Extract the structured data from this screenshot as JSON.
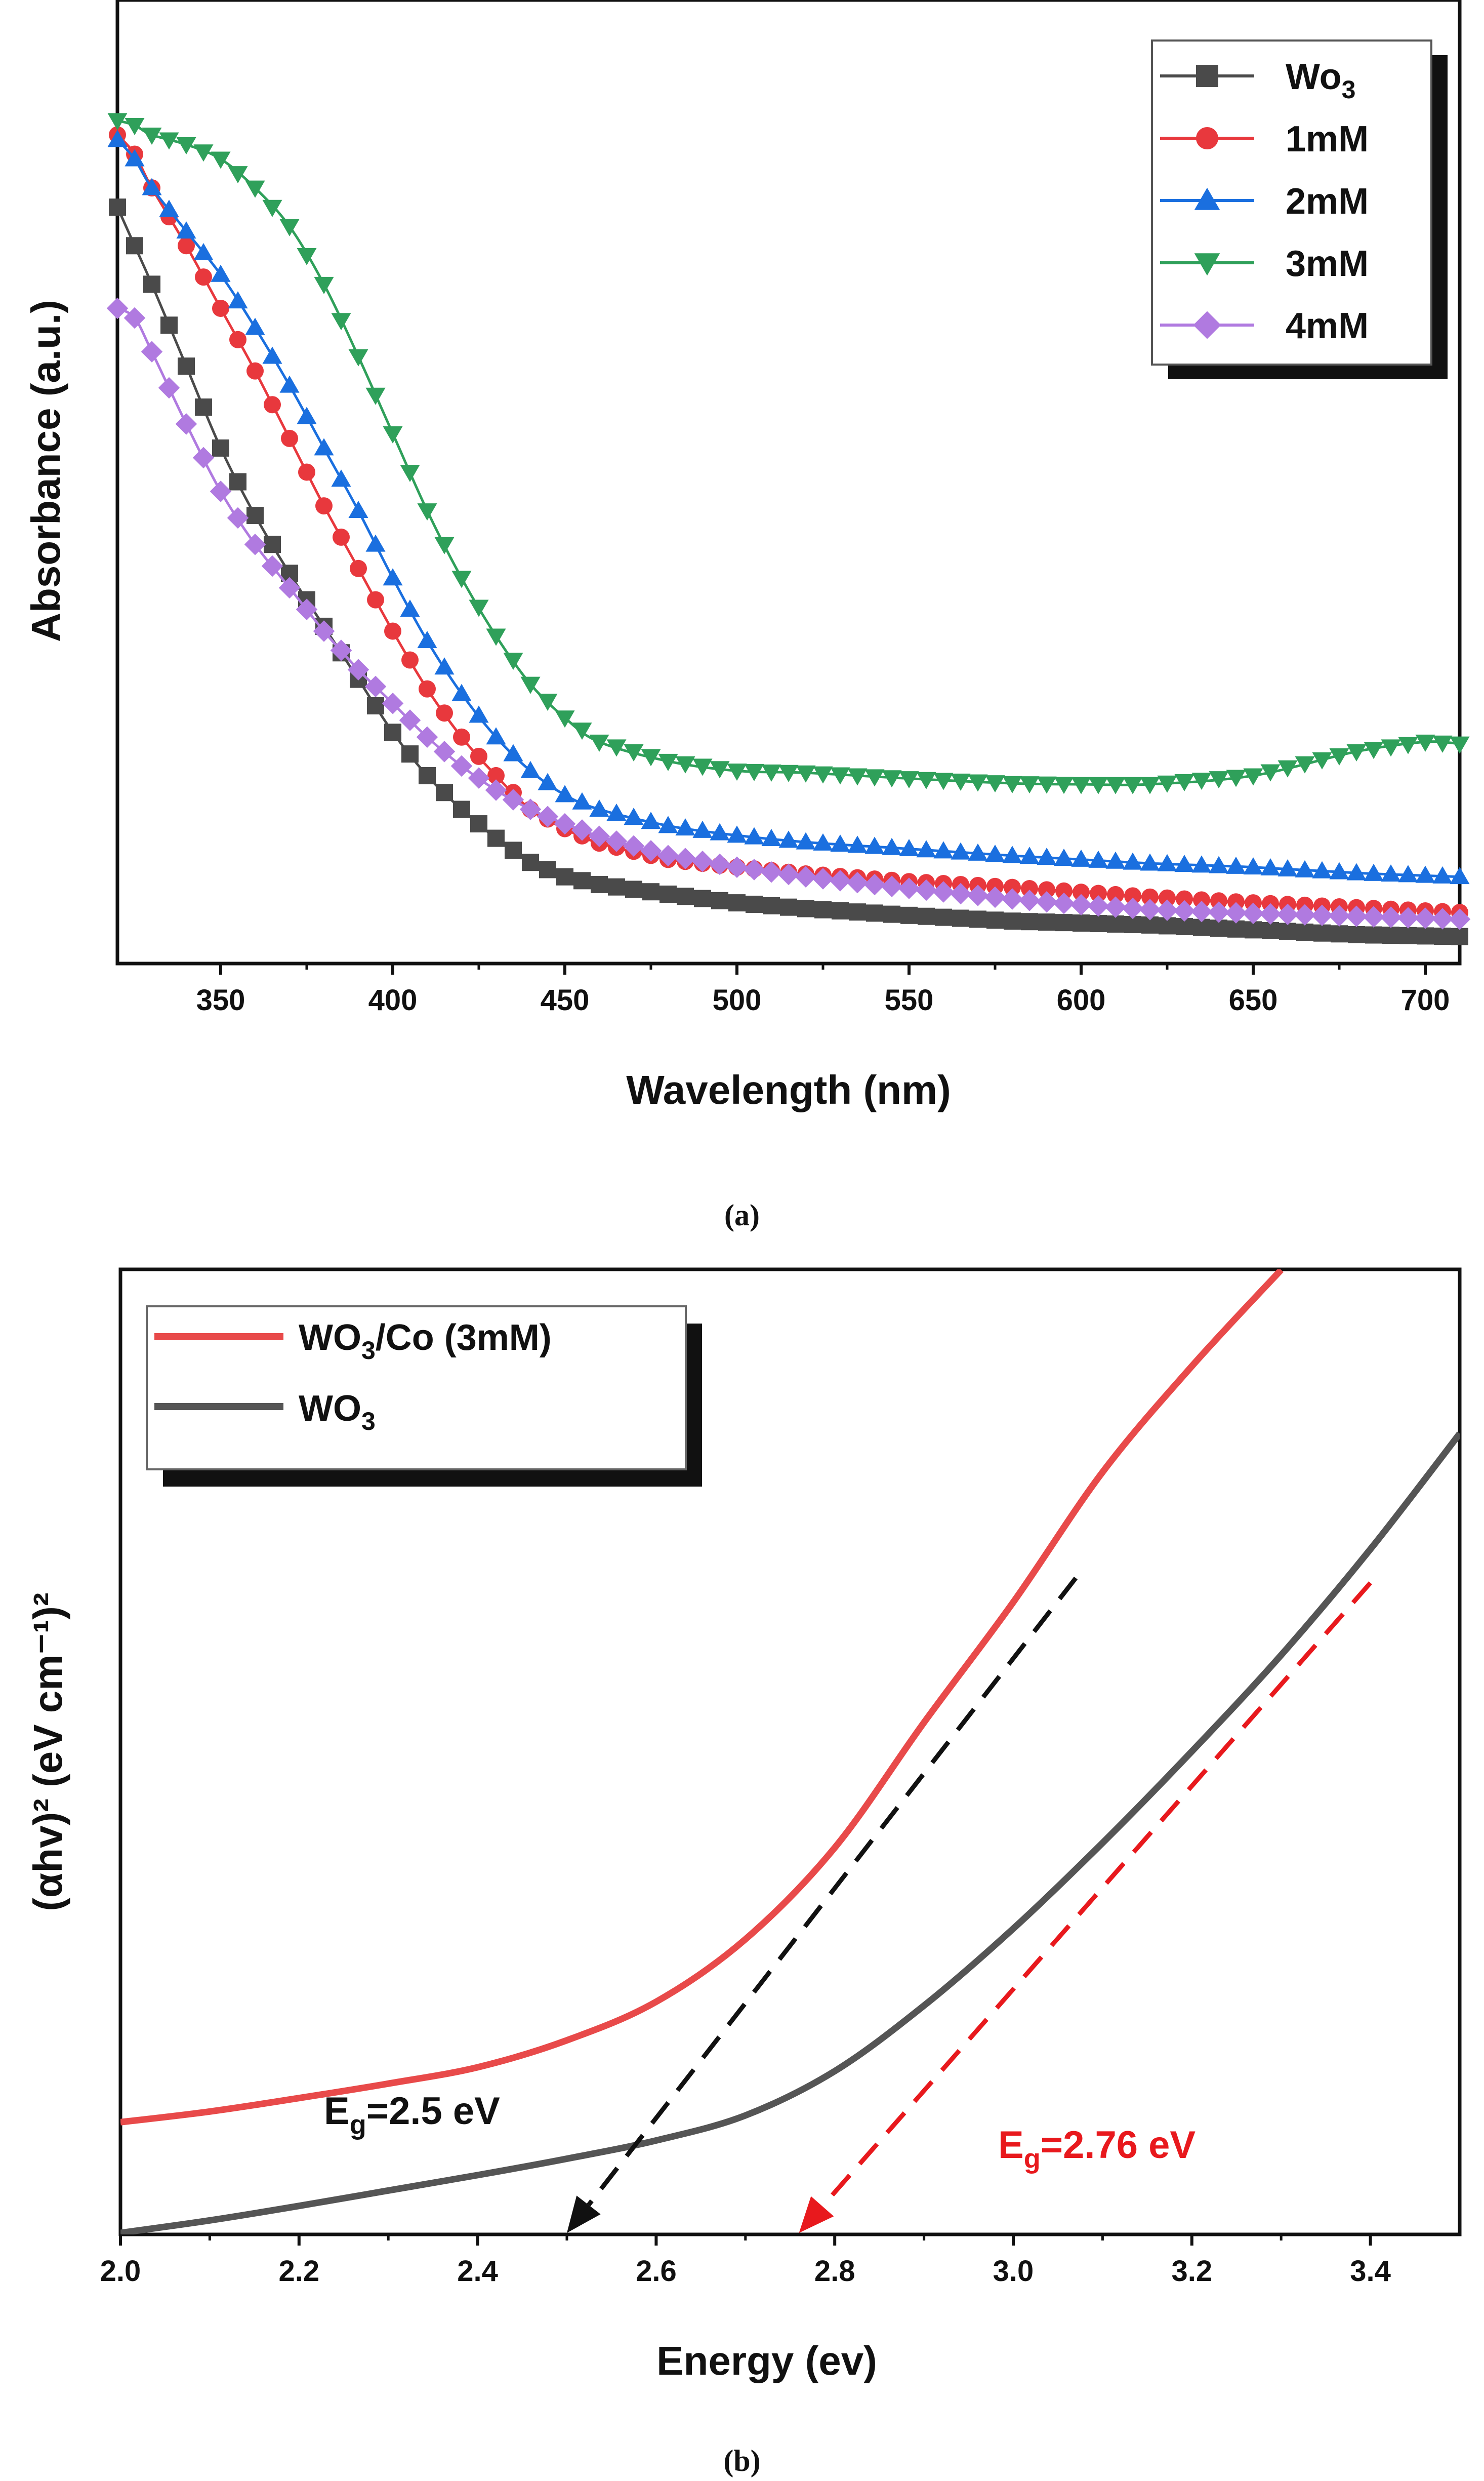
{
  "colors": {
    "wo3": "#4a4a4a",
    "c1mM": "#e8383d",
    "c2mM": "#1a6fdf",
    "c3mM": "#2fa05a",
    "c4mM": "#b07ae0",
    "bandRed": "#e84a4a",
    "bandBlack": "#555555"
  },
  "chart_data": [
    {
      "panel": "a",
      "type": "line",
      "caption": "(a)",
      "xlabel": "Wavelength (nm)",
      "ylabel": "Absorbance (a.u.)",
      "xlim": [
        320,
        710
      ],
      "ylim": [
        0,
        1
      ],
      "x_ticks": [
        "350",
        "400",
        "450",
        "500",
        "550",
        "600",
        "650",
        "700"
      ],
      "y_ticks_shown": false,
      "legend_position": "top-right",
      "series": [
        {
          "key": "wo3",
          "name": "Wo",
          "name_sub": "3",
          "marker": "square",
          "points": [
            [
              320,
              0.785
            ],
            [
              325,
              0.745
            ],
            [
              330,
              0.705
            ],
            [
              340,
              0.62
            ],
            [
              350,
              0.535
            ],
            [
              360,
              0.465
            ],
            [
              370,
              0.405
            ],
            [
              380,
              0.35
            ],
            [
              390,
              0.295
            ],
            [
              400,
              0.24
            ],
            [
              410,
              0.195
            ],
            [
              420,
              0.16
            ],
            [
              430,
              0.13
            ],
            [
              440,
              0.105
            ],
            [
              450,
              0.09
            ],
            [
              460,
              0.082
            ],
            [
              480,
              0.072
            ],
            [
              500,
              0.063
            ],
            [
              520,
              0.057
            ],
            [
              550,
              0.05
            ],
            [
              580,
              0.044
            ],
            [
              600,
              0.042
            ],
            [
              620,
              0.04
            ],
            [
              650,
              0.035
            ],
            [
              680,
              0.03
            ],
            [
              710,
              0.028
            ]
          ]
        },
        {
          "key": "c1mM",
          "name": "1mM",
          "marker": "circle",
          "points": [
            [
              320,
              0.86
            ],
            [
              325,
              0.84
            ],
            [
              330,
              0.805
            ],
            [
              340,
              0.745
            ],
            [
              350,
              0.68
            ],
            [
              360,
              0.615
            ],
            [
              370,
              0.545
            ],
            [
              380,
              0.475
            ],
            [
              390,
              0.41
            ],
            [
              400,
              0.345
            ],
            [
              410,
              0.285
            ],
            [
              420,
              0.235
            ],
            [
              430,
              0.195
            ],
            [
              440,
              0.16
            ],
            [
              450,
              0.14
            ],
            [
              460,
              0.125
            ],
            [
              480,
              0.108
            ],
            [
              500,
              0.1
            ],
            [
              520,
              0.093
            ],
            [
              550,
              0.085
            ],
            [
              580,
              0.079
            ],
            [
              600,
              0.074
            ],
            [
              620,
              0.069
            ],
            [
              650,
              0.063
            ],
            [
              680,
              0.058
            ],
            [
              710,
              0.053
            ]
          ]
        },
        {
          "key": "c2mM",
          "name": "2mM",
          "marker": "triangle-up",
          "points": [
            [
              320,
              0.855
            ],
            [
              325,
              0.835
            ],
            [
              330,
              0.805
            ],
            [
              340,
              0.76
            ],
            [
              350,
              0.715
            ],
            [
              360,
              0.66
            ],
            [
              370,
              0.6
            ],
            [
              380,
              0.535
            ],
            [
              390,
              0.47
            ],
            [
              400,
              0.4
            ],
            [
              410,
              0.335
            ],
            [
              420,
              0.28
            ],
            [
              430,
              0.235
            ],
            [
              440,
              0.2
            ],
            [
              450,
              0.175
            ],
            [
              460,
              0.16
            ],
            [
              480,
              0.143
            ],
            [
              500,
              0.133
            ],
            [
              520,
              0.126
            ],
            [
              550,
              0.119
            ],
            [
              580,
              0.112
            ],
            [
              600,
              0.108
            ],
            [
              620,
              0.104
            ],
            [
              650,
              0.1
            ],
            [
              680,
              0.094
            ],
            [
              710,
              0.09
            ]
          ]
        },
        {
          "key": "c3mM",
          "name": "3mM",
          "marker": "triangle-down",
          "points": [
            [
              320,
              0.875
            ],
            [
              325,
              0.87
            ],
            [
              330,
              0.86
            ],
            [
              340,
              0.85
            ],
            [
              350,
              0.835
            ],
            [
              360,
              0.805
            ],
            [
              370,
              0.765
            ],
            [
              380,
              0.705
            ],
            [
              390,
              0.63
            ],
            [
              400,
              0.55
            ],
            [
              410,
              0.47
            ],
            [
              420,
              0.4
            ],
            [
              430,
              0.34
            ],
            [
              440,
              0.29
            ],
            [
              450,
              0.255
            ],
            [
              460,
              0.23
            ],
            [
              480,
              0.21
            ],
            [
              500,
              0.2
            ],
            [
              520,
              0.198
            ],
            [
              550,
              0.192
            ],
            [
              580,
              0.187
            ],
            [
              600,
              0.186
            ],
            [
              620,
              0.186
            ],
            [
              650,
              0.195
            ],
            [
              680,
              0.22
            ],
            [
              700,
              0.23
            ],
            [
              710,
              0.228
            ]
          ]
        },
        {
          "key": "c4mM",
          "name": "4mM",
          "marker": "diamond",
          "points": [
            [
              320,
              0.68
            ],
            [
              325,
              0.67
            ],
            [
              330,
              0.635
            ],
            [
              340,
              0.56
            ],
            [
              350,
              0.49
            ],
            [
              360,
              0.435
            ],
            [
              370,
              0.39
            ],
            [
              380,
              0.345
            ],
            [
              390,
              0.305
            ],
            [
              400,
              0.27
            ],
            [
              410,
              0.235
            ],
            [
              420,
              0.205
            ],
            [
              430,
              0.18
            ],
            [
              440,
              0.16
            ],
            [
              450,
              0.145
            ],
            [
              460,
              0.132
            ],
            [
              480,
              0.112
            ],
            [
              500,
              0.1
            ],
            [
              520,
              0.09
            ],
            [
              550,
              0.078
            ],
            [
              580,
              0.067
            ],
            [
              600,
              0.061
            ],
            [
              620,
              0.056
            ],
            [
              650,
              0.052
            ],
            [
              680,
              0.049
            ],
            [
              710,
              0.046
            ]
          ]
        }
      ]
    },
    {
      "panel": "b",
      "type": "line",
      "caption": "(b)",
      "xlabel": "Energy (ev)",
      "ylabel": "(αhv)² (eV cm⁻¹)²",
      "xlim": [
        2.0,
        3.5
      ],
      "ylim": [
        0,
        1
      ],
      "x_ticks": [
        "2.0",
        "2.2",
        "2.4",
        "2.6",
        "2.8",
        "3.0",
        "3.2",
        "3.4"
      ],
      "y_ticks_shown": false,
      "legend_position": "top-left",
      "legend": [
        {
          "key": "bandRed",
          "name": "WO",
          "name_sub": "3",
          "name_suffix": "/Co (3mM)"
        },
        {
          "key": "bandBlack",
          "name": "WO",
          "name_sub": "3",
          "name_suffix": ""
        }
      ],
      "series": [
        {
          "key": "bandRed",
          "name": "WO3/Co (3mM)",
          "points": [
            [
              2.0,
              0.115
            ],
            [
              2.1,
              0.126
            ],
            [
              2.2,
              0.14
            ],
            [
              2.3,
              0.155
            ],
            [
              2.4,
              0.172
            ],
            [
              2.5,
              0.2
            ],
            [
              2.6,
              0.24
            ],
            [
              2.7,
              0.305
            ],
            [
              2.8,
              0.4
            ],
            [
              2.9,
              0.53
            ],
            [
              3.0,
              0.655
            ],
            [
              3.1,
              0.79
            ],
            [
              3.2,
              0.9
            ],
            [
              3.3,
              1.0
            ]
          ]
        },
        {
          "key": "bandBlack",
          "name": "WO3",
          "points": [
            [
              2.0,
              0.0
            ],
            [
              2.1,
              0.013
            ],
            [
              2.2,
              0.028
            ],
            [
              2.3,
              0.044
            ],
            [
              2.4,
              0.06
            ],
            [
              2.5,
              0.077
            ],
            [
              2.6,
              0.096
            ],
            [
              2.7,
              0.122
            ],
            [
              2.8,
              0.168
            ],
            [
              2.9,
              0.236
            ],
            [
              3.0,
              0.316
            ],
            [
              3.1,
              0.405
            ],
            [
              3.2,
              0.5
            ],
            [
              3.3,
              0.6
            ],
            [
              3.4,
              0.71
            ],
            [
              3.5,
              0.83
            ]
          ]
        }
      ],
      "tangents": [
        {
          "color_key": "bandBlack",
          "from": [
            3.07,
            0.68
          ],
          "to": [
            2.5,
            0.0
          ]
        },
        {
          "color_key": "bandRed",
          "from": [
            3.4,
            0.675
          ],
          "to": [
            2.76,
            0.0
          ]
        }
      ],
      "annotations": [
        {
          "key": "eg1",
          "main": "E",
          "sub": "g",
          "rest": "=2.5 eV",
          "color_key": "bandBlack"
        },
        {
          "key": "eg2",
          "main": "E",
          "sub": "g",
          "rest": "=2.76 eV",
          "color_key": "bandRed"
        }
      ]
    }
  ]
}
